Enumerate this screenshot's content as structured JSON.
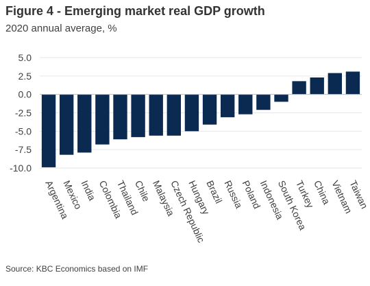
{
  "header": {
    "title": "Figure 4 - Emerging market real GDP growth",
    "subtitle": "2020 annual average, %"
  },
  "footer": {
    "source": "Source: KBC Economics based on IMF"
  },
  "colors": {
    "bar": "#0b2a52",
    "grid": "#e6e6e6",
    "axis": "#bfbfbf"
  },
  "chart_data": {
    "type": "bar",
    "title": "",
    "xlabel": "",
    "ylabel": "",
    "categories": [
      "Argentina",
      "Mexico",
      "India",
      "Colombia",
      "Thailand",
      "Chile",
      "Malaysia",
      "Czech Republic",
      "Hungary",
      "Brazil",
      "Russia",
      "Poland",
      "Indonesia",
      "South Korea",
      "Turkey",
      "China",
      "Vietnam",
      "Taiwan"
    ],
    "values": [
      -9.9,
      -8.2,
      -7.9,
      -6.8,
      -6.1,
      -5.8,
      -5.6,
      -5.6,
      -5.0,
      -4.1,
      -3.1,
      -2.7,
      -2.1,
      -1.0,
      1.8,
      2.3,
      2.9,
      3.1
    ],
    "ylim": [
      -10,
      5
    ],
    "yticks": [
      "5.0",
      "2.5",
      "0.0",
      "-2.5",
      "-5.0",
      "-7.5",
      "-10.0"
    ],
    "grid": true,
    "legend": "none"
  }
}
